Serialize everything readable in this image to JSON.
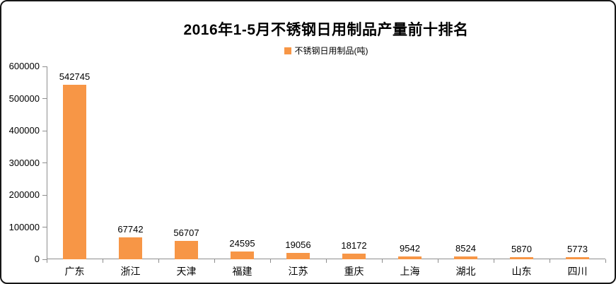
{
  "chart": {
    "title": "2016年1-5月不锈钢日用制品产量前十排名",
    "legend_label": "不锈钢日用制品(吨)"
  },
  "chart_data": {
    "type": "bar",
    "title": "2016年1-5月不锈钢日用制品产量前十排名",
    "categories": [
      "广东",
      "浙江",
      "天津",
      "福建",
      "江苏",
      "重庆",
      "上海",
      "湖北",
      "山东",
      "四川"
    ],
    "values": [
      542745,
      67742,
      56707,
      24595,
      19056,
      18172,
      9542,
      8524,
      5870,
      5773
    ],
    "legend": [
      "不锈钢日用制品(吨)"
    ],
    "xlabel": "",
    "ylabel": "",
    "ylim": [
      0,
      600000
    ],
    "ytick_step": 100000,
    "grid": false,
    "legend_position": "top",
    "data_labels": true,
    "bar_color": "#F79646",
    "axis_color": "#8E8E8E",
    "text_color": "#000000"
  }
}
